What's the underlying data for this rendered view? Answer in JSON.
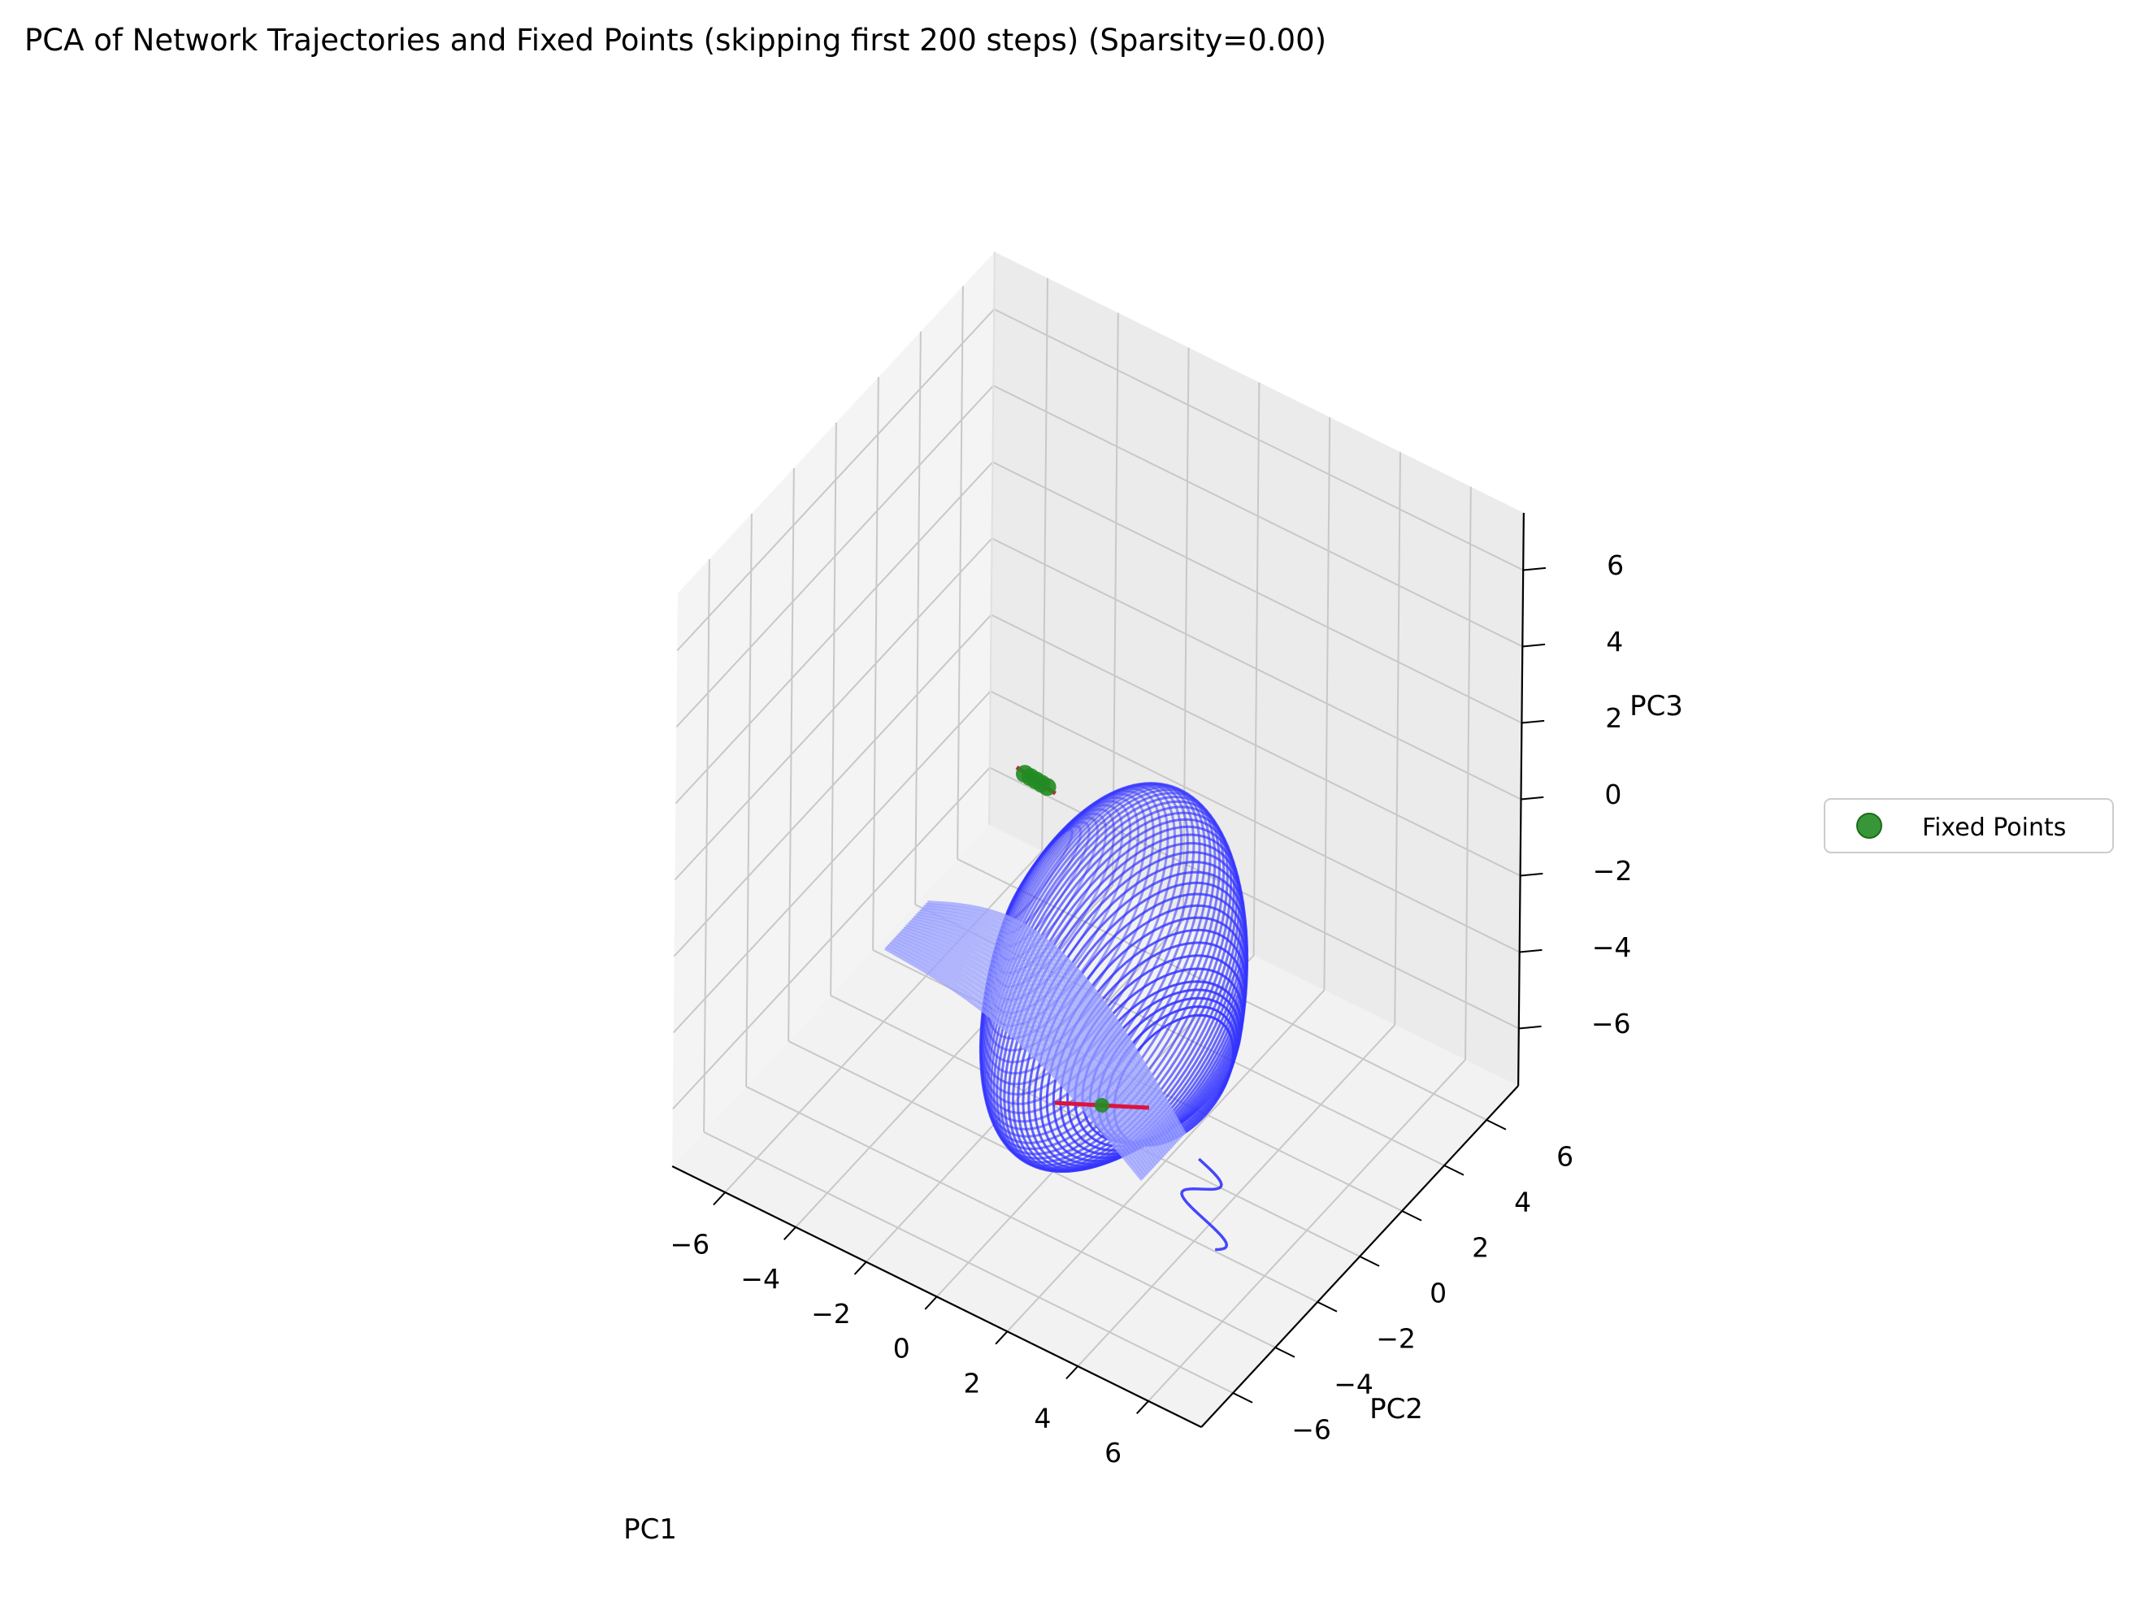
{
  "chart_data": {
    "type": "line",
    "projection": "3d",
    "title": "PCA of Network Trajectories and Fixed Points (skipping first 200 steps) (Sparsity=0.00)",
    "xlabel": "PC1",
    "ylabel": "PC2",
    "zlabel": "PC3",
    "xlim": [
      -7.5,
      7.5
    ],
    "ylim": [
      -7.5,
      7.5
    ],
    "zlim": [
      -7.5,
      7.5
    ],
    "xticks": [
      -6,
      -4,
      -2,
      0,
      2,
      4,
      6
    ],
    "yticks": [
      -6,
      -4,
      -2,
      0,
      2,
      4,
      6
    ],
    "zticks": [
      -6,
      -4,
      -2,
      0,
      2,
      4,
      6
    ],
    "xtick_labels": [
      "−6",
      "−4",
      "−2",
      "0",
      "2",
      "4",
      "6"
    ],
    "ytick_labels": [
      "−6",
      "−4",
      "−2",
      "0",
      "2",
      "4",
      "6"
    ],
    "ztick_labels": [
      "−6",
      "−4",
      "−2",
      "0",
      "2",
      "4",
      "6"
    ],
    "grid": true,
    "legend": {
      "position": "right",
      "entries": [
        {
          "label": "Fixed Points",
          "marker": "circle",
          "color": "#228b22"
        }
      ]
    },
    "series": [
      {
        "kind": "trajectory",
        "color": "#3333ff",
        "approx_extent": {
          "pc1": [
            -4.5,
            5.5
          ],
          "pc2": [
            -3,
            5
          ],
          "pc3": [
            -6.5,
            2.5
          ]
        }
      },
      {
        "name": "Fixed Points",
        "kind": "scatter",
        "color": "#228b22",
        "points": [
          {
            "x": -2.2,
            "y": 0.2,
            "z": 0.6
          },
          {
            "x": -2.1,
            "y": 0.3,
            "z": 0.5
          },
          {
            "x": -2.0,
            "y": 0.4,
            "z": 0.4
          },
          {
            "x": -1.9,
            "y": 0.5,
            "z": 0.3
          },
          {
            "x": -1.8,
            "y": 0.6,
            "z": 0.2
          },
          {
            "x": 1.6,
            "y": -2.4,
            "z": -4.8
          }
        ]
      },
      {
        "kind": "eigenvector-segments",
        "color": "#dc143c"
      }
    ]
  }
}
